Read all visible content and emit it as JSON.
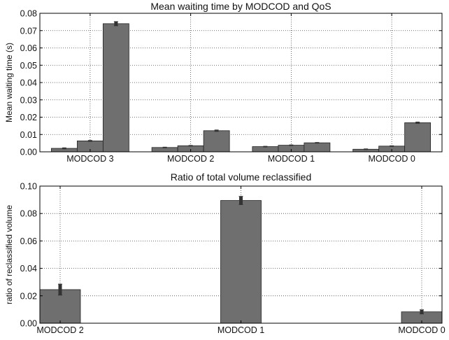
{
  "chart_data": [
    {
      "type": "bar",
      "title": "Mean waiting time by MODCOD and QoS",
      "xlabel": "",
      "ylabel": "Mean waiting time (s)",
      "ylim": [
        0,
        0.08
      ],
      "yticks": [
        "0.00",
        "0.01",
        "0.02",
        "0.03",
        "0.04",
        "0.05",
        "0.06",
        "0.07",
        "0.08"
      ],
      "grid": true,
      "categories": [
        "MODCOD 3",
        "MODCOD 2",
        "MODCOD 1",
        "MODCOD 0"
      ],
      "series": [
        {
          "values": [
            0.002,
            0.0025,
            0.003,
            0.0015
          ],
          "errors": [
            0.0003,
            0.0002,
            0.0002,
            0.0002
          ]
        },
        {
          "values": [
            0.0063,
            0.0035,
            0.0038,
            0.0033
          ],
          "errors": [
            0.0003,
            0.0002,
            0.0002,
            0.0002
          ]
        },
        {
          "values": [
            0.074,
            0.0122,
            0.0052,
            0.0168
          ],
          "errors": [
            0.0012,
            0.0004,
            0.0002,
            0.0004
          ]
        }
      ],
      "bar_color": "#6f6f6f",
      "error_color": "#333333"
    },
    {
      "type": "bar",
      "title": "Ratio of total volume reclassified",
      "xlabel": "",
      "ylabel": "ratio of reclassified volume",
      "ylim": [
        0,
        0.1
      ],
      "yticks": [
        "0.00",
        "0.02",
        "0.04",
        "0.06",
        "0.08",
        "0.10"
      ],
      "grid": true,
      "categories": [
        "MODCOD 2",
        "MODCOD 1",
        "MODCOD 0"
      ],
      "series": [
        {
          "values": [
            0.0245,
            0.0895,
            0.0083
          ],
          "errors": [
            0.004,
            0.003,
            0.0015
          ]
        }
      ],
      "bar_color": "#6f6f6f",
      "error_color": "#333333"
    }
  ]
}
